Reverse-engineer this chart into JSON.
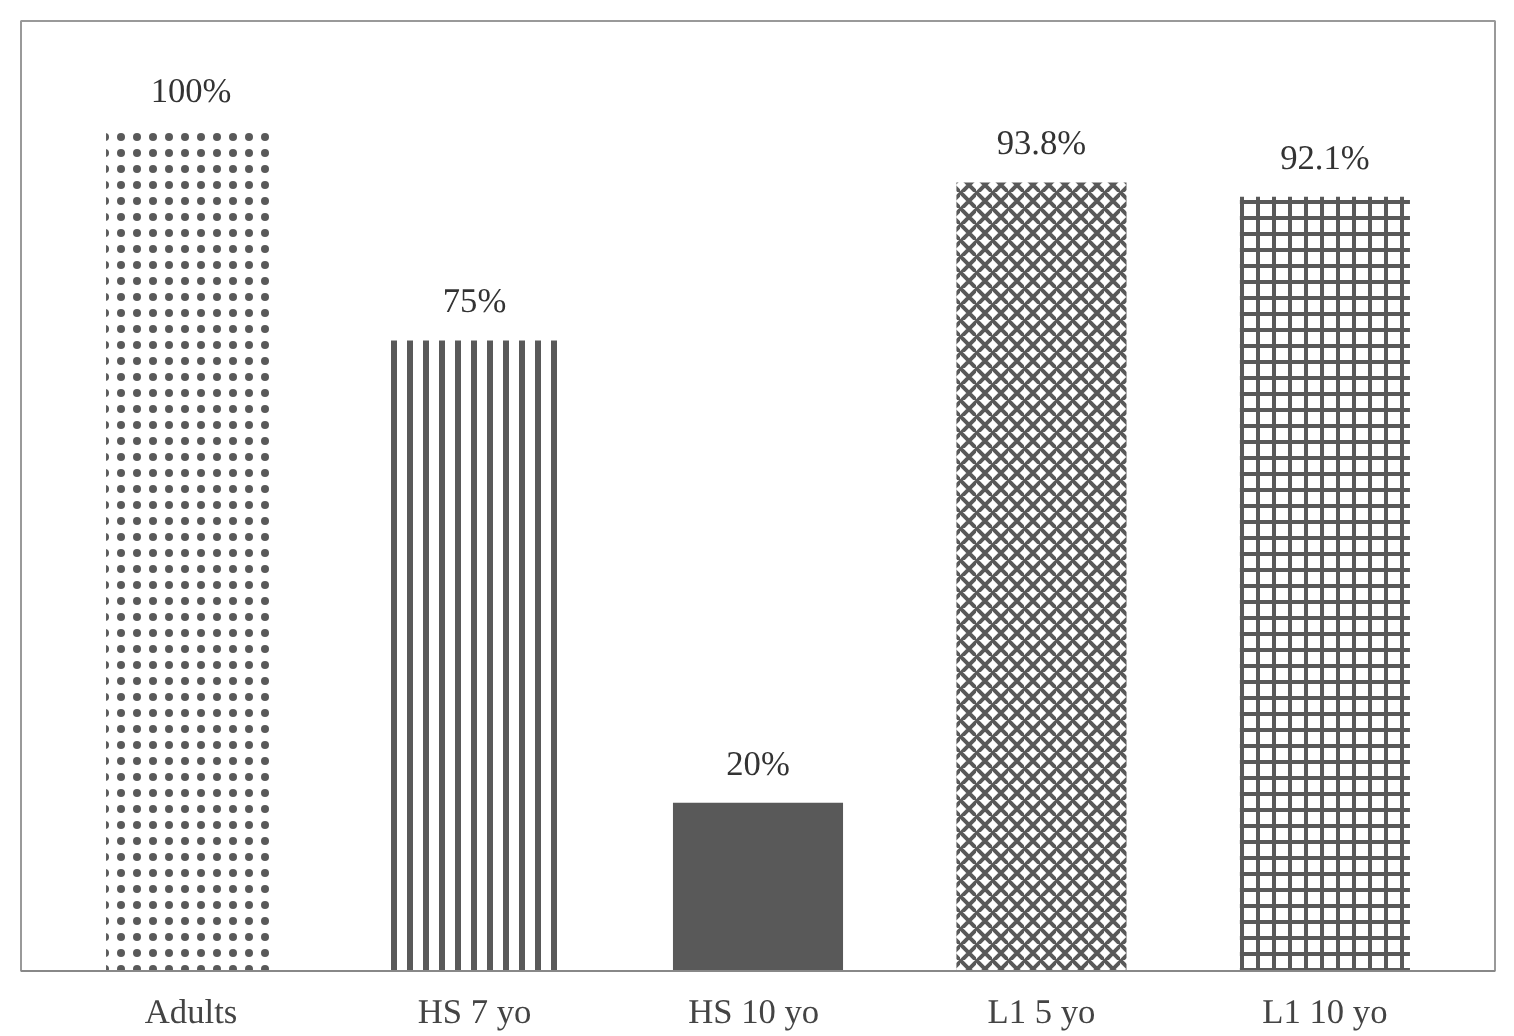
{
  "chart_data": {
    "type": "bar",
    "categories": [
      "Adults",
      "HS 7 yo",
      "HS 10  yo",
      "L1 5 yo",
      "L1 10 yo"
    ],
    "values": [
      100,
      75,
      20,
      93.8,
      92.1
    ],
    "value_labels": [
      "100%",
      "75%",
      "20%",
      "93.8%",
      "92.1%"
    ],
    "colors": [
      "#595959",
      "#595959",
      "#595959",
      "#595959",
      "#595959"
    ],
    "grid": false
  }
}
